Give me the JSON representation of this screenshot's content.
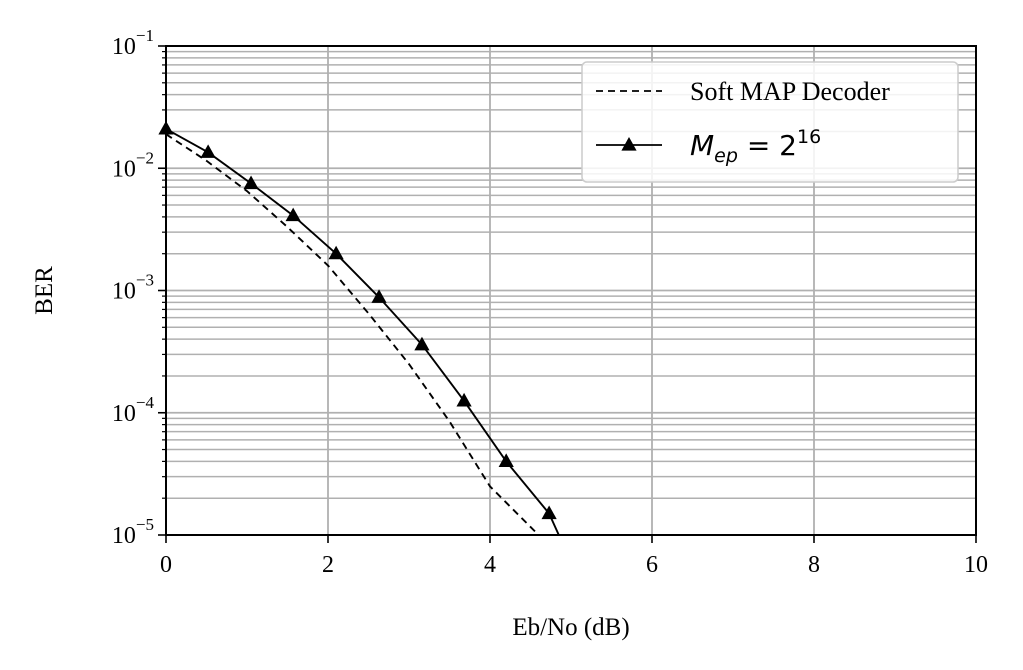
{
  "chart_data": {
    "type": "line",
    "xlabel": "Eb/No (dB)",
    "ylabel": "BER",
    "xlim": [
      0,
      10
    ],
    "ylim": [
      1e-05,
      0.1
    ],
    "yscale": "log",
    "grid": true,
    "legend_position": "top-right",
    "x_ticks": [
      {
        "value": 0,
        "label": "0"
      },
      {
        "value": 2,
        "label": "2"
      },
      {
        "value": 4,
        "label": "4"
      },
      {
        "value": 6,
        "label": "6"
      },
      {
        "value": 8,
        "label": "8"
      },
      {
        "value": 10,
        "label": "10"
      }
    ],
    "y_ticks": [
      {
        "value": 0.1,
        "base": "10",
        "exp": "−1"
      },
      {
        "value": 0.01,
        "base": "10",
        "exp": "−2"
      },
      {
        "value": 0.001,
        "base": "10",
        "exp": "−3"
      },
      {
        "value": 0.0001,
        "base": "10",
        "exp": "−4"
      },
      {
        "value": 1e-05,
        "base": "10",
        "exp": "−5"
      }
    ],
    "series": [
      {
        "name": "Soft MAP Decoder",
        "style": "dashed",
        "marker": "none",
        "color": "#000000",
        "x": [
          0,
          0.5,
          1.0,
          1.5,
          2.0,
          2.5,
          3.0,
          3.5,
          4.0,
          4.6
        ],
        "y": [
          0.019,
          0.0115,
          0.0065,
          0.0033,
          0.0016,
          0.00065,
          0.00025,
          8.5e-05,
          2.5e-05,
          1e-05
        ]
      },
      {
        "name": "M_ep = 2^16",
        "name_parts": {
          "symbol": "M",
          "subscript": "ep",
          "rhs": " = 2",
          "superscript": "16"
        },
        "style": "solid",
        "marker": "triangle",
        "color": "#000000",
        "x": [
          0,
          0.52,
          1.05,
          1.57,
          2.1,
          2.63,
          3.16,
          3.68,
          4.2,
          4.73,
          4.85
        ],
        "y": [
          0.021,
          0.0135,
          0.0075,
          0.0041,
          0.002,
          0.00088,
          0.00036,
          0.000125,
          4e-05,
          1.5e-05,
          1e-05
        ],
        "marker_count": 10
      }
    ]
  }
}
